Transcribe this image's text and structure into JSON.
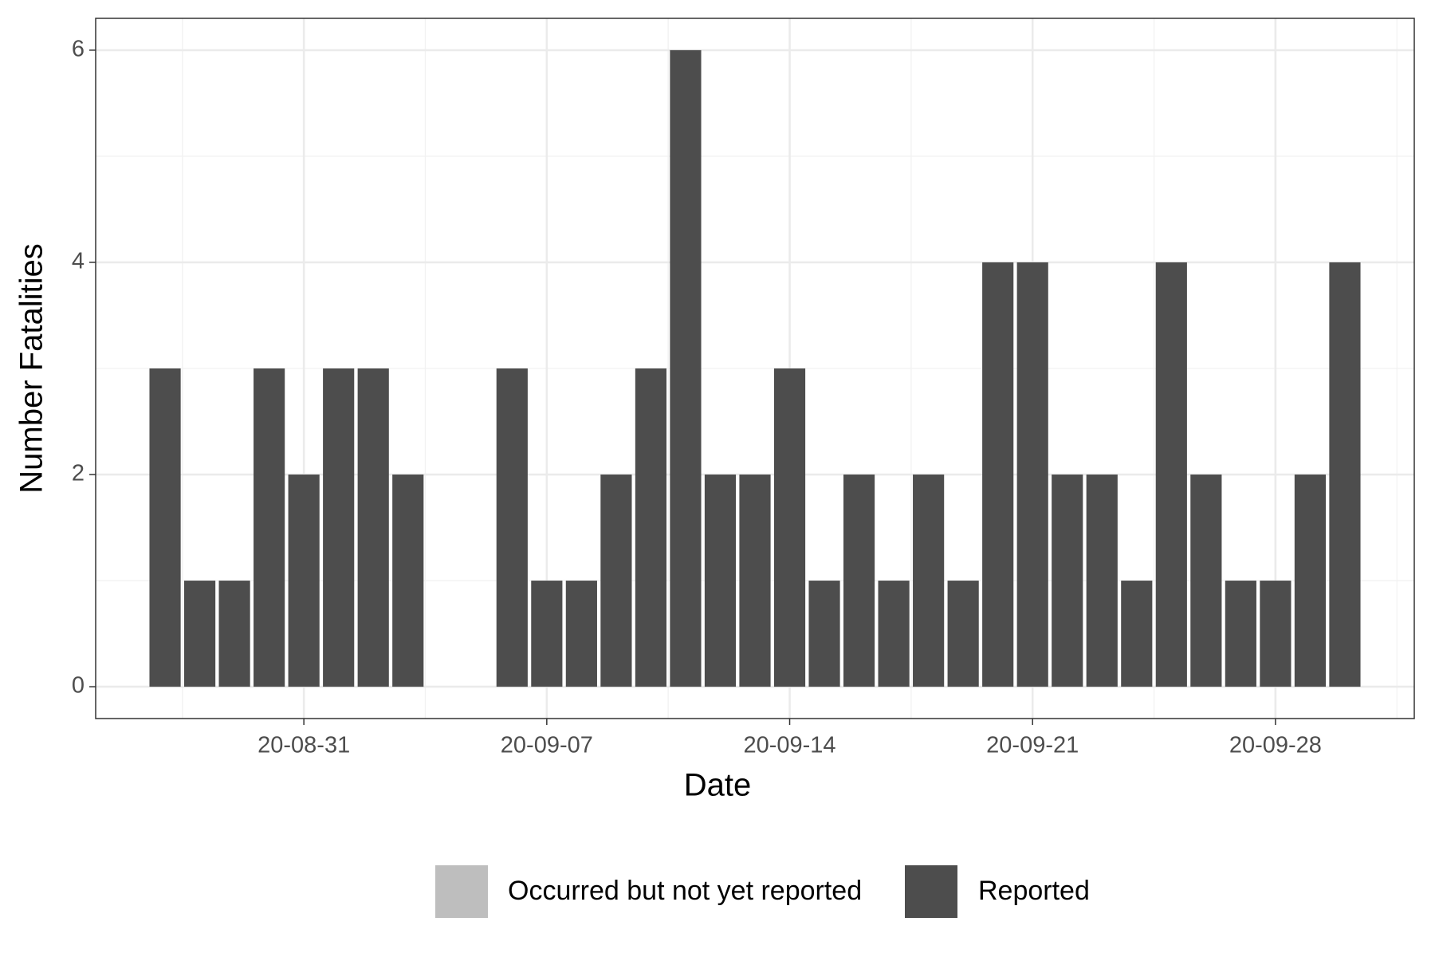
{
  "chart_data": {
    "type": "bar",
    "stacked": true,
    "x_label": "Date",
    "y_label": "Number Fatalities",
    "x": [
      "20-08-27",
      "20-08-28",
      "20-08-29",
      "20-08-30",
      "20-08-31",
      "20-09-01",
      "20-09-02",
      "20-09-03",
      "20-09-06",
      "20-09-07",
      "20-09-08",
      "20-09-09",
      "20-09-10",
      "20-09-11",
      "20-09-12",
      "20-09-13",
      "20-09-14",
      "20-09-15",
      "20-09-16",
      "20-09-17",
      "20-09-18",
      "20-09-19",
      "20-09-20",
      "20-09-21",
      "20-09-22",
      "20-09-23",
      "20-09-24",
      "20-09-25",
      "20-09-26",
      "20-09-27",
      "20-09-28",
      "20-09-29",
      "20-09-30"
    ],
    "series": [
      {
        "name": "Reported",
        "color": "#4d4d4d",
        "values": [
          3,
          1,
          1,
          3,
          2,
          3,
          3,
          2,
          3,
          1,
          1,
          2,
          3,
          6,
          2,
          2,
          3,
          1,
          2,
          1,
          2,
          1,
          4,
          4,
          2,
          2,
          1,
          4,
          2,
          1,
          1,
          2,
          4
        ]
      },
      {
        "name": "Occurred but not yet reported",
        "color": "#bebebe",
        "values": [
          0,
          0,
          0,
          0,
          0,
          0,
          0,
          0,
          0,
          0,
          0,
          0,
          0,
          0,
          0,
          0,
          0,
          0,
          0,
          0,
          0,
          0,
          0,
          0,
          0,
          0,
          0,
          0,
          0,
          0,
          0,
          0,
          0
        ]
      }
    ],
    "xlim": [
      "20-08-25",
      "20-10-02"
    ],
    "xticks": [
      "20-08-31",
      "20-09-07",
      "20-09-14",
      "20-09-21",
      "20-09-28"
    ],
    "ylim": [
      -0.3,
      6.3
    ],
    "yticks": [
      0,
      2,
      4,
      6
    ],
    "grid": true,
    "legend": "bottom"
  }
}
